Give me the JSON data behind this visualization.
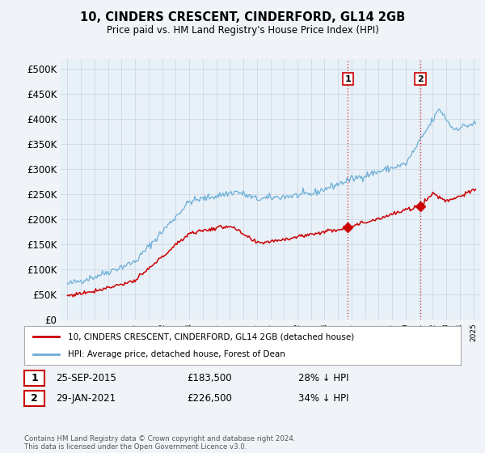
{
  "title": "10, CINDERS CRESCENT, CINDERFORD, GL14 2GB",
  "subtitle": "Price paid vs. HM Land Registry's House Price Index (HPI)",
  "ylabel_ticks": [
    "£0",
    "£50K",
    "£100K",
    "£150K",
    "£200K",
    "£250K",
    "£300K",
    "£350K",
    "£400K",
    "£450K",
    "£500K"
  ],
  "ytick_values": [
    0,
    50000,
    100000,
    150000,
    200000,
    250000,
    300000,
    350000,
    400000,
    450000,
    500000
  ],
  "ylim": [
    0,
    520000
  ],
  "xlim_start": 1994.5,
  "xlim_end": 2025.5,
  "hpi_color": "#6baed6",
  "price_color": "#cc0000",
  "marker1_x": 2015.73,
  "marker1_y": 183500,
  "marker2_x": 2021.08,
  "marker2_y": 226500,
  "marker1_label": "1",
  "marker2_label": "2",
  "vline1_x": 2015.73,
  "vline2_x": 2021.08,
  "vline_color": "#cc0000",
  "legend_line1": "10, CINDERS CRESCENT, CINDERFORD, GL14 2GB (detached house)",
  "legend_line2": "HPI: Average price, detached house, Forest of Dean",
  "table_row1": [
    "1",
    "25-SEP-2015",
    "£183,500",
    "28% ↓ HPI"
  ],
  "table_row2": [
    "2",
    "29-JAN-2021",
    "£226,500",
    "34% ↓ HPI"
  ],
  "footnote": "Contains HM Land Registry data © Crown copyright and database right 2024.\nThis data is licensed under the Open Government Licence v3.0.",
  "background_color": "#f0f4f8",
  "plot_bg_color": "#e8f0f8",
  "grid_color": "#c8d4e0"
}
